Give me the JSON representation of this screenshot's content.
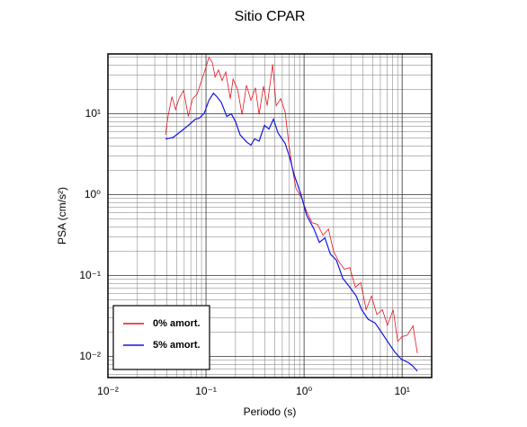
{
  "chart_data": {
    "type": "line",
    "title": "Sitio CPAR",
    "x_label": "Periodo (s)",
    "y_label": "PSA (cm/s²)",
    "x_scale": "log",
    "y_scale": "log",
    "grid": true,
    "legend_position": "lower left",
    "xlim": [
      0.01,
      20
    ],
    "ylim": [
      0.0055,
      55
    ],
    "xticks": [
      {
        "value": 0.01,
        "label": "10⁻²"
      },
      {
        "value": 0.1,
        "label": "10⁻¹"
      },
      {
        "value": 1,
        "label": "10⁰"
      },
      {
        "value": 10,
        "label": "10¹"
      }
    ],
    "yticks": [
      {
        "value": 0.01,
        "label": "10⁻²"
      },
      {
        "value": 0.1,
        "label": "10⁻¹"
      },
      {
        "value": 1,
        "label": "10⁰"
      },
      {
        "value": 10,
        "label": "10¹"
      }
    ],
    "x_minor_ticks": [
      0.02,
      0.03,
      0.04,
      0.05,
      0.06,
      0.07,
      0.08,
      0.09,
      0.2,
      0.3,
      0.4,
      0.5,
      0.6,
      0.7,
      0.8,
      0.9,
      2,
      3,
      4,
      5,
      6,
      7,
      8,
      9
    ],
    "y_minor_ticks": [
      0.006,
      0.007,
      0.008,
      0.009,
      0.02,
      0.03,
      0.04,
      0.05,
      0.06,
      0.07,
      0.08,
      0.09,
      0.2,
      0.3,
      0.4,
      0.5,
      0.6,
      0.7,
      0.8,
      0.9,
      2,
      3,
      4,
      5,
      6,
      7,
      8,
      9,
      20,
      30,
      40,
      50
    ],
    "series": [
      {
        "name": "0% amort.",
        "color": "#e8141e",
        "x": [
          0.0386,
          0.041,
          0.045,
          0.049,
          0.053,
          0.059,
          0.066,
          0.073,
          0.081,
          0.09,
          0.098,
          0.107,
          0.116,
          0.124,
          0.134,
          0.146,
          0.159,
          0.177,
          0.189,
          0.21,
          0.233,
          0.259,
          0.287,
          0.319,
          0.348,
          0.386,
          0.421,
          0.478,
          0.52,
          0.577,
          0.642,
          0.698,
          0.76,
          0.827,
          0.939,
          1.065,
          1.21,
          1.37,
          1.56,
          1.77,
          2.0,
          2.28,
          2.58,
          2.93,
          3.33,
          3.78,
          4.29,
          4.87,
          5.53,
          6.28,
          7.1,
          8.1,
          9.0,
          10.0,
          11.3,
          12.9,
          14.3
        ],
        "values": [
          5.5,
          9.3,
          16.3,
          11.3,
          15.4,
          19.4,
          9.3,
          15.4,
          17.5,
          25.8,
          35,
          50,
          43,
          28.5,
          35,
          25.8,
          33,
          15.4,
          27,
          20,
          9.8,
          22.6,
          14.7,
          21,
          9.8,
          22,
          12.6,
          41,
          12.6,
          15.4,
          10.5,
          4.3,
          2.1,
          1.2,
          0.93,
          0.615,
          0.45,
          0.43,
          0.316,
          0.378,
          0.2,
          0.147,
          0.12,
          0.126,
          0.072,
          0.082,
          0.038,
          0.056,
          0.033,
          0.038,
          0.0245,
          0.038,
          0.0154,
          0.0176,
          0.0184,
          0.024,
          0.011
        ]
      },
      {
        "name": "5% amort.",
        "color": "#1414e6",
        "x": [
          0.0386,
          0.046,
          0.053,
          0.066,
          0.078,
          0.085,
          0.096,
          0.107,
          0.119,
          0.129,
          0.143,
          0.163,
          0.181,
          0.201,
          0.223,
          0.259,
          0.287,
          0.313,
          0.348,
          0.395,
          0.439,
          0.488,
          0.542,
          0.642,
          0.713,
          0.793,
          0.919,
          1.065,
          1.26,
          1.43,
          1.63,
          1.85,
          2.14,
          2.48,
          2.93,
          3.4,
          3.86,
          4.49,
          5.3,
          6.15,
          7.1,
          8.4,
          9.8,
          11.6,
          12.9,
          14.3
        ],
        "values": [
          4.9,
          5.1,
          5.8,
          7.2,
          8.6,
          8.8,
          10.2,
          14.7,
          18,
          16.3,
          13.9,
          9.3,
          10,
          7.9,
          5.5,
          4.5,
          4.1,
          4.9,
          4.6,
          7.2,
          6.5,
          8.6,
          5.8,
          4.3,
          2.9,
          1.76,
          1.05,
          0.555,
          0.378,
          0.258,
          0.293,
          0.185,
          0.155,
          0.093,
          0.072,
          0.056,
          0.038,
          0.029,
          0.026,
          0.02,
          0.0154,
          0.0114,
          0.0093,
          0.0084,
          0.0076,
          0.0066
        ]
      }
    ]
  }
}
